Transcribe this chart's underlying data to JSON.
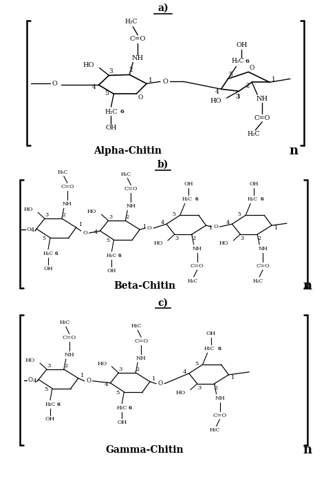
{
  "bg_color": "#ffffff",
  "text_color": "#000000",
  "title_a": "a)",
  "title_b": "b)",
  "title_c": "c)",
  "label_alpha": "Alpha-Chitin",
  "label_beta": "Beta-Chitin",
  "label_gamma": "Gamma-Chitin",
  "n_label": "n",
  "figsize": [
    4.74,
    6.98
  ],
  "dpi": 100
}
